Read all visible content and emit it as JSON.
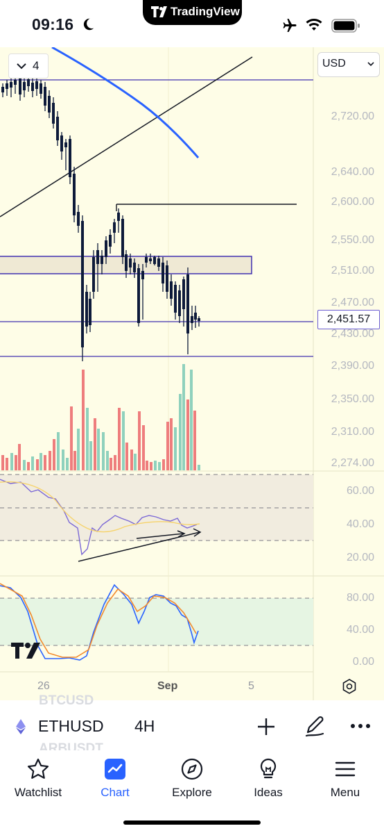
{
  "status_bar": {
    "time": "09:16",
    "app_pill": "TradingView"
  },
  "chart": {
    "currency": "USD",
    "indicator_count": "4",
    "current_price": "2,451.57",
    "price_labels": [
      "2,720.00",
      "2,640.00",
      "2,600.00",
      "2,550.00",
      "2,510.00",
      "2,470.00",
      "2,430.00",
      "2,390.00",
      "2,350.00",
      "2,310.00",
      "2,274.00"
    ],
    "osc1_labels": [
      "60.00",
      "40.00",
      "20.00"
    ],
    "osc2_labels": [
      "80.00",
      "40.00",
      "0.00"
    ],
    "time_labels": [
      "26",
      "Sep",
      "5"
    ],
    "colors": {
      "bg": "#fefde7",
      "up": "#26a69a",
      "down": "#0d1a3a",
      "volume_up": "#8fd1bd",
      "volume_down": "#ee7d7d",
      "hline": "#3f2fb0",
      "ma": "#2962ff"
    }
  },
  "chart_data": {
    "type": "candlestick",
    "symbol": "ETHUSD",
    "interval": "4H",
    "current_price": 2451.57,
    "x_ticks": [
      "26",
      "Sep",
      "5"
    ],
    "price_axis": [
      2720,
      2640,
      2600,
      2550,
      2510,
      2470,
      2430,
      2390,
      2350,
      2310,
      2274
    ],
    "oscillator1_axis": [
      60,
      40,
      20
    ],
    "oscillator2_axis": [
      80,
      40,
      0
    ]
  },
  "symbol_bar": {
    "ghost_above": "BTCUSD",
    "ghost_below": "ARBUSDT",
    "symbol": "ETHUSD",
    "interval": "4H"
  },
  "tabs": [
    {
      "label": "Watchlist",
      "icon": "star-icon"
    },
    {
      "label": "Chart",
      "icon": "chart-icon"
    },
    {
      "label": "Explore",
      "icon": "compass-icon"
    },
    {
      "label": "Ideas",
      "icon": "lightbulb-icon"
    },
    {
      "label": "Menu",
      "icon": "menu-icon"
    }
  ]
}
